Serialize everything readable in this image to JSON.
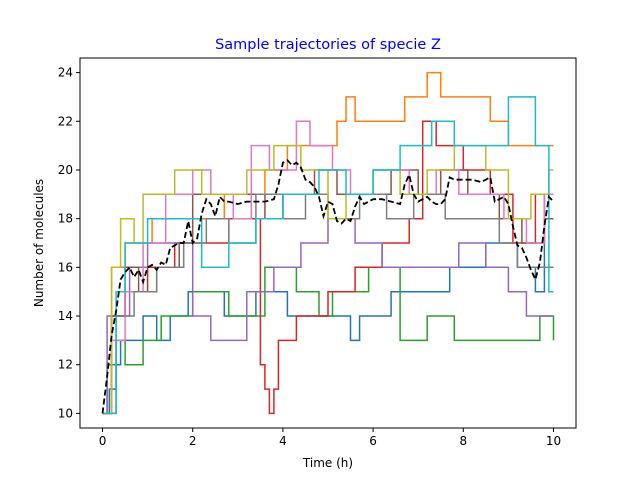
{
  "chart_data": {
    "type": "line",
    "title": "Sample trajectories of specie Z",
    "title_color": "#0000ff",
    "xlabel": "Time (h)",
    "ylabel": "Number of molecules",
    "xlim": [
      -0.5,
      10.5
    ],
    "ylim": [
      9.4,
      24.6
    ],
    "xticks": [
      0,
      2,
      4,
      6,
      8,
      10
    ],
    "yticks": [
      10,
      12,
      14,
      16,
      18,
      20,
      22,
      24
    ],
    "xtick_labels": [
      "0",
      "2",
      "4",
      "6",
      "8",
      "10"
    ],
    "ytick_labels": [
      "10",
      "12",
      "14",
      "16",
      "18",
      "20",
      "22",
      "24"
    ],
    "grid": false,
    "legend": "none",
    "step_series": [
      {
        "color": "#1f77b4",
        "points": [
          [
            0,
            10
          ],
          [
            0.15,
            11
          ],
          [
            0.3,
            12
          ],
          [
            0.4,
            13
          ],
          [
            0.9,
            14
          ],
          [
            1.2,
            13
          ],
          [
            1.5,
            14
          ],
          [
            1.9,
            15
          ],
          [
            2.7,
            14
          ],
          [
            3.4,
            15
          ],
          [
            4.1,
            14
          ],
          [
            5.5,
            13
          ],
          [
            5.7,
            14
          ],
          [
            6.4,
            15
          ],
          [
            7.2,
            15
          ],
          [
            7.7,
            16
          ],
          [
            8.5,
            17
          ],
          [
            9.2,
            16
          ],
          [
            9.6,
            15
          ],
          [
            9.8,
            19
          ],
          [
            10,
            19
          ]
        ]
      },
      {
        "color": "#ff7f0e",
        "points": [
          [
            0,
            10
          ],
          [
            0.2,
            16
          ],
          [
            0.5,
            17
          ],
          [
            1.1,
            18
          ],
          [
            2.1,
            18
          ],
          [
            2.7,
            19
          ],
          [
            3.6,
            20
          ],
          [
            4.1,
            21
          ],
          [
            4.6,
            21
          ],
          [
            5.2,
            22
          ],
          [
            5.4,
            23
          ],
          [
            5.6,
            22
          ],
          [
            6.0,
            22
          ],
          [
            6.7,
            23
          ],
          [
            7.2,
            24
          ],
          [
            7.5,
            23
          ],
          [
            7.9,
            23
          ],
          [
            8.3,
            23
          ],
          [
            8.6,
            22
          ],
          [
            9.0,
            21
          ],
          [
            9.5,
            21
          ],
          [
            9.8,
            21
          ],
          [
            10,
            21
          ]
        ]
      },
      {
        "color": "#2ca02c",
        "points": [
          [
            0,
            10
          ],
          [
            0.1,
            12
          ],
          [
            0.3,
            13
          ],
          [
            0.5,
            12
          ],
          [
            0.7,
            12
          ],
          [
            0.9,
            13
          ],
          [
            1.3,
            14
          ],
          [
            2.0,
            15
          ],
          [
            2.8,
            14
          ],
          [
            3.6,
            16
          ],
          [
            4.3,
            15
          ],
          [
            4.8,
            14
          ],
          [
            5.1,
            15
          ],
          [
            5.9,
            16
          ],
          [
            6.6,
            13
          ],
          [
            7.2,
            14
          ],
          [
            7.8,
            13
          ],
          [
            8.4,
            13
          ],
          [
            8.9,
            13
          ],
          [
            9.3,
            13
          ],
          [
            9.7,
            14
          ],
          [
            10,
            13
          ]
        ]
      },
      {
        "color": "#d62728",
        "points": [
          [
            0,
            10
          ],
          [
            0.2,
            14
          ],
          [
            0.5,
            15
          ],
          [
            1.0,
            16
          ],
          [
            1.6,
            17
          ],
          [
            2.2,
            17
          ],
          [
            2.8,
            18
          ],
          [
            3.1,
            18
          ],
          [
            3.5,
            12
          ],
          [
            3.6,
            11
          ],
          [
            3.7,
            10
          ],
          [
            3.8,
            11
          ],
          [
            3.9,
            13
          ],
          [
            4.3,
            14
          ],
          [
            5.0,
            15
          ],
          [
            5.6,
            16
          ],
          [
            6.2,
            17
          ],
          [
            6.8,
            18
          ],
          [
            7.1,
            22
          ],
          [
            7.4,
            21
          ],
          [
            8.0,
            20
          ],
          [
            8.6,
            19
          ],
          [
            9.1,
            17
          ],
          [
            9.6,
            19
          ],
          [
            10,
            19
          ]
        ]
      },
      {
        "color": "#9467bd",
        "points": [
          [
            0,
            10
          ],
          [
            0.1,
            14
          ],
          [
            0.6,
            16
          ],
          [
            1.0,
            17
          ],
          [
            1.6,
            17
          ],
          [
            2.0,
            14
          ],
          [
            2.4,
            13
          ],
          [
            2.8,
            13
          ],
          [
            3.2,
            15
          ],
          [
            3.8,
            16
          ],
          [
            4.4,
            17
          ],
          [
            5.0,
            18
          ],
          [
            5.6,
            17
          ],
          [
            6.2,
            16
          ],
          [
            6.7,
            16
          ],
          [
            7.2,
            16
          ],
          [
            7.9,
            17
          ],
          [
            8.5,
            16
          ],
          [
            9.0,
            15
          ],
          [
            9.4,
            14
          ],
          [
            9.9,
            14
          ],
          [
            10,
            14
          ]
        ]
      },
      {
        "color": "#8c564b",
        "points": [
          [
            0,
            10
          ],
          [
            0.2,
            14
          ],
          [
            0.5,
            16
          ],
          [
            0.8,
            15
          ],
          [
            1.2,
            16
          ],
          [
            1.7,
            17
          ],
          [
            2.0,
            19
          ],
          [
            2.6,
            19
          ],
          [
            3.2,
            19
          ],
          [
            3.6,
            18
          ],
          [
            4.0,
            19
          ],
          [
            4.7,
            20
          ],
          [
            5.2,
            19
          ],
          [
            5.8,
            19
          ],
          [
            6.4,
            20
          ],
          [
            7.0,
            19
          ],
          [
            7.5,
            20
          ],
          [
            8.1,
            19
          ],
          [
            8.8,
            18
          ],
          [
            9.3,
            17
          ],
          [
            9.8,
            18
          ],
          [
            10,
            18
          ]
        ]
      },
      {
        "color": "#e377c2",
        "points": [
          [
            0,
            10
          ],
          [
            0.2,
            13
          ],
          [
            0.5,
            15
          ],
          [
            0.9,
            17
          ],
          [
            1.4,
            19
          ],
          [
            2.0,
            20
          ],
          [
            2.4,
            19
          ],
          [
            2.9,
            18
          ],
          [
            3.3,
            21
          ],
          [
            3.7,
            20
          ],
          [
            4.3,
            22
          ],
          [
            4.6,
            21
          ],
          [
            5.1,
            20
          ],
          [
            5.5,
            19
          ],
          [
            6.0,
            20
          ],
          [
            6.8,
            19
          ],
          [
            7.4,
            20
          ],
          [
            7.9,
            19
          ],
          [
            8.4,
            19
          ],
          [
            8.9,
            18
          ],
          [
            9.4,
            17
          ],
          [
            9.8,
            19
          ],
          [
            10,
            19
          ]
        ]
      },
      {
        "color": "#7f7f7f",
        "points": [
          [
            0,
            10
          ],
          [
            0.3,
            14
          ],
          [
            0.7,
            15
          ],
          [
            1.2,
            16
          ],
          [
            1.8,
            17
          ],
          [
            2.3,
            18
          ],
          [
            2.8,
            17
          ],
          [
            3.4,
            19
          ],
          [
            4.0,
            18
          ],
          [
            4.5,
            19
          ],
          [
            5.0,
            18
          ],
          [
            5.7,
            19
          ],
          [
            6.3,
            18
          ],
          [
            6.9,
            19
          ],
          [
            7.6,
            18
          ],
          [
            8.2,
            18
          ],
          [
            8.8,
            17
          ],
          [
            9.2,
            16
          ],
          [
            9.7,
            16
          ],
          [
            10,
            16
          ]
        ]
      },
      {
        "color": "#bcbd22",
        "points": [
          [
            0,
            10
          ],
          [
            0.2,
            16
          ],
          [
            0.4,
            18
          ],
          [
            0.7,
            17
          ],
          [
            0.9,
            19
          ],
          [
            1.6,
            20
          ],
          [
            2.2,
            19
          ],
          [
            2.7,
            19
          ],
          [
            3.2,
            20
          ],
          [
            3.8,
            21
          ],
          [
            4.4,
            20
          ],
          [
            5.0,
            18
          ],
          [
            5.4,
            19
          ],
          [
            6.0,
            20
          ],
          [
            6.6,
            19
          ],
          [
            7.2,
            20
          ],
          [
            7.8,
            21
          ],
          [
            8.5,
            20
          ],
          [
            9.0,
            18
          ],
          [
            9.5,
            19
          ],
          [
            9.9,
            20
          ],
          [
            10,
            20
          ]
        ]
      },
      {
        "color": "#17becf",
        "points": [
          [
            0,
            10
          ],
          [
            0.3,
            15
          ],
          [
            0.5,
            17
          ],
          [
            1.0,
            18
          ],
          [
            1.6,
            18
          ],
          [
            2.2,
            16
          ],
          [
            2.8,
            17
          ],
          [
            3.4,
            18
          ],
          [
            4.0,
            19
          ],
          [
            4.8,
            20
          ],
          [
            5.4,
            19
          ],
          [
            6.0,
            20
          ],
          [
            6.6,
            21
          ],
          [
            7.3,
            22
          ],
          [
            7.8,
            21
          ],
          [
            8.4,
            21
          ],
          [
            9.0,
            23
          ],
          [
            9.6,
            21
          ],
          [
            9.9,
            15
          ],
          [
            10,
            15
          ]
        ]
      }
    ],
    "mean_series": {
      "color": "#000000",
      "style": "dashed",
      "points": [
        [
          0,
          10
        ],
        [
          0.1,
          11.5
        ],
        [
          0.2,
          13.2
        ],
        [
          0.3,
          14.2
        ],
        [
          0.4,
          15.5
        ],
        [
          0.5,
          15.8
        ],
        [
          0.6,
          16.0
        ],
        [
          0.7,
          15.6
        ],
        [
          0.8,
          15.9
        ],
        [
          0.9,
          15.4
        ],
        [
          1.0,
          16.0
        ],
        [
          1.1,
          16.1
        ],
        [
          1.2,
          15.9
        ],
        [
          1.3,
          16.2
        ],
        [
          1.4,
          16.1
        ],
        [
          1.5,
          16.8
        ],
        [
          1.6,
          16.9
        ],
        [
          1.7,
          17.0
        ],
        [
          1.8,
          17.0
        ],
        [
          1.9,
          17.9
        ],
        [
          2.0,
          17.0
        ],
        [
          2.1,
          17.2
        ],
        [
          2.2,
          18.2
        ],
        [
          2.3,
          18.8
        ],
        [
          2.4,
          18.6
        ],
        [
          2.5,
          18.1
        ],
        [
          2.6,
          18.9
        ],
        [
          2.7,
          18.7
        ],
        [
          2.8,
          18.7
        ],
        [
          3.0,
          18.6
        ],
        [
          3.2,
          18.7
        ],
        [
          3.4,
          18.7
        ],
        [
          3.6,
          18.7
        ],
        [
          3.8,
          18.8
        ],
        [
          3.9,
          19.4
        ],
        [
          4.0,
          20.3
        ],
        [
          4.1,
          20.4
        ],
        [
          4.2,
          20.2
        ],
        [
          4.3,
          20.3
        ],
        [
          4.4,
          20.1
        ],
        [
          4.5,
          19.6
        ],
        [
          4.6,
          19.5
        ],
        [
          4.7,
          19.3
        ],
        [
          4.8,
          18.9
        ],
        [
          4.9,
          18.1
        ],
        [
          5.0,
          18.7
        ],
        [
          5.1,
          18.6
        ],
        [
          5.2,
          17.9
        ],
        [
          5.3,
          17.8
        ],
        [
          5.4,
          18.0
        ],
        [
          5.5,
          17.9
        ],
        [
          5.6,
          18.5
        ],
        [
          5.7,
          18.9
        ],
        [
          5.8,
          18.6
        ],
        [
          6.0,
          18.8
        ],
        [
          6.2,
          18.8
        ],
        [
          6.4,
          18.7
        ],
        [
          6.6,
          18.6
        ],
        [
          6.7,
          19.4
        ],
        [
          6.8,
          19.8
        ],
        [
          6.9,
          19.0
        ],
        [
          7.0,
          18.7
        ],
        [
          7.1,
          18.8
        ],
        [
          7.2,
          18.9
        ],
        [
          7.3,
          18.7
        ],
        [
          7.4,
          18.6
        ],
        [
          7.5,
          18.6
        ],
        [
          7.6,
          18.8
        ],
        [
          7.7,
          19.7
        ],
        [
          7.8,
          19.6
        ],
        [
          8.0,
          19.6
        ],
        [
          8.2,
          19.6
        ],
        [
          8.4,
          19.5
        ],
        [
          8.6,
          19.7
        ],
        [
          8.7,
          18.7
        ],
        [
          8.8,
          18.8
        ],
        [
          8.9,
          18.9
        ],
        [
          9.0,
          18.6
        ],
        [
          9.1,
          17.7
        ],
        [
          9.2,
          16.9
        ],
        [
          9.3,
          16.8
        ],
        [
          9.4,
          16.4
        ],
        [
          9.5,
          15.9
        ],
        [
          9.6,
          15.5
        ],
        [
          9.7,
          16.2
        ],
        [
          9.8,
          17.7
        ],
        [
          9.9,
          18.9
        ],
        [
          10.0,
          18.7
        ]
      ]
    }
  }
}
